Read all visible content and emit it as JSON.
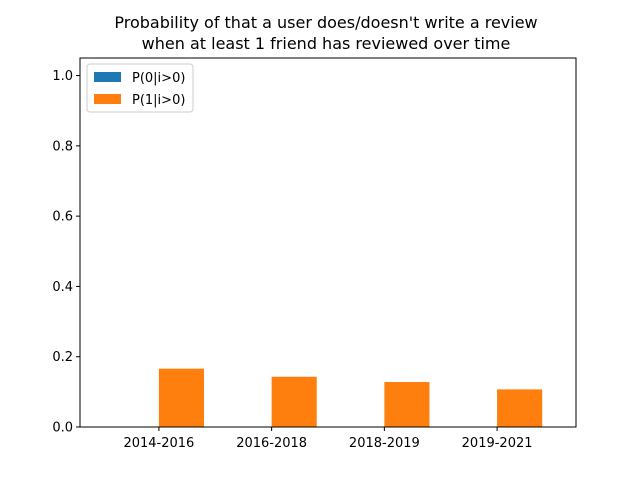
{
  "chart_data": {
    "type": "bar",
    "title_line1": "Probability of that a user does/doesn't write a review",
    "title_line2": "when at least 1 friend has reviewed over time",
    "categories": [
      "2014-2016",
      "2016-2018",
      "2018-2019",
      "2019-2021"
    ],
    "series": [
      {
        "name": "P(0|i>0)",
        "color": "#1f77b4",
        "values": [
          0.0,
          0.0,
          0.0,
          0.0
        ]
      },
      {
        "name": "P(1|i>0)",
        "color": "#ff7f0e",
        "values": [
          0.166,
          0.143,
          0.128,
          0.107
        ]
      }
    ],
    "ylim": [
      0,
      1.05
    ],
    "yticks": [
      0.0,
      0.2,
      0.4,
      0.6,
      0.8,
      1.0
    ],
    "ytick_labels": [
      "0.0",
      "0.2",
      "0.4",
      "0.6",
      "0.8",
      "1.0"
    ],
    "xlabel": "",
    "ylabel": "",
    "legend_position": "upper-left",
    "grid": false
  }
}
